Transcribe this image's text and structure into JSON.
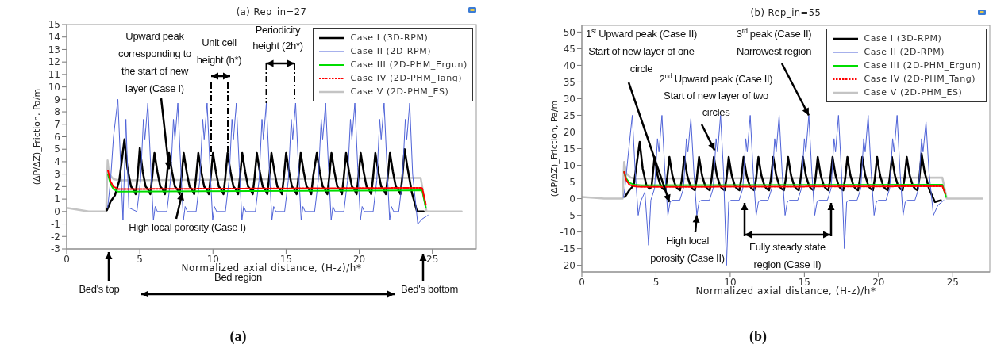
{
  "chart_data": [
    {
      "type": "line",
      "title": "(a) Rep_in=27",
      "xlabel": "Normalized axial distance, (H-z)/h*",
      "ylabel": "(ΔP/ΔZ)_Friction, Pa/m",
      "xlim": [
        0,
        28
      ],
      "ylim": [
        -3,
        15
      ],
      "xticks": [
        0,
        5,
        10,
        15,
        20,
        25
      ],
      "yticks": [
        -3,
        -2,
        -1,
        0,
        1,
        2,
        3,
        4,
        5,
        6,
        7,
        8,
        9,
        10,
        11,
        12,
        13,
        14,
        15
      ],
      "legend": "top right",
      "annotations": [
        {
          "text": "Upward peak corresponding to the start of new layer (Case I)",
          "x": 7.0,
          "y": 3.4
        },
        "Unit cell height (h*)",
        {
          "text": "Periodicity height (2h*)",
          "x": 13.65,
          "y": 8.7
        },
        {
          "text": "High local porosity (Case I)",
          "x": 7.9,
          "y": 1.5
        },
        "Bed's top",
        "Bed region",
        "Bed's bottom",
        "(a)"
      ],
      "series": [
        {
          "name": "Case I (3D-RPM)",
          "color": "#000000",
          "x": [
            2.75,
            3,
            3.3,
            3.6,
            3.95,
            4.15,
            4.4,
            4.55,
            4.72,
            4.85,
            5,
            5.2,
            5.4,
            5.55,
            5.72,
            5.85,
            6,
            6.2,
            6.4,
            6.55,
            6.72,
            6.85,
            7,
            7.2,
            7.4,
            7.55,
            7.72,
            7.85,
            8,
            8.2,
            8.4,
            8.55,
            8.72,
            8.85,
            9,
            9.2,
            9.4,
            9.55,
            9.72,
            9.85,
            10,
            10.2,
            10.4,
            10.55,
            10.72,
            10.85,
            11,
            11.2,
            11.4,
            11.55,
            11.72,
            11.85,
            12,
            12.2,
            12.4,
            12.55,
            12.72,
            12.85,
            13,
            13.2,
            13.4,
            13.55,
            13.72,
            13.85,
            14,
            14.2,
            14.4,
            14.55,
            14.72,
            14.85,
            15,
            15.2,
            15.4,
            15.55,
            15.72,
            15.85,
            16,
            16.2,
            16.4,
            16.55,
            16.72,
            16.85,
            17.1,
            17.3,
            17.5,
            17.65,
            17.82,
            17.95,
            18.1,
            18.3,
            18.5,
            18.65,
            18.82,
            18.95,
            19.1,
            19.3,
            19.5,
            19.65,
            19.82,
            19.95,
            20.1,
            20.3,
            20.5,
            20.65,
            20.82,
            20.95,
            21.1,
            21.3,
            21.5,
            21.65,
            21.82,
            21.95,
            22.1,
            22.3,
            22.5,
            22.65,
            22.82,
            22.95,
            23.1,
            23.3,
            23.6,
            23.95,
            24.4
          ],
          "values": [
            0.1,
            0.8,
            1.3,
            2.5,
            5.8,
            3.5,
            2,
            1.8,
            1.4,
            2.8,
            5.1,
            3.2,
            2,
            1.8,
            1.4,
            2.8,
            4.7,
            3.2,
            2,
            1.8,
            1.4,
            2.8,
            4.7,
            3.2,
            2,
            1.8,
            1.4,
            2.8,
            4.7,
            3.2,
            2,
            1.8,
            1.4,
            2.8,
            4.7,
            3.2,
            2,
            1.8,
            1.4,
            2.8,
            4.7,
            3.2,
            2,
            1.8,
            1.4,
            2.8,
            4.7,
            3.2,
            2,
            1.8,
            1.4,
            2.8,
            4.7,
            3.2,
            2,
            1.8,
            1.4,
            2.8,
            4.7,
            3.2,
            2,
            1.8,
            1.4,
            2.8,
            4.7,
            3.2,
            2,
            1.8,
            1.4,
            2.8,
            4.7,
            3.2,
            2,
            1.8,
            1.4,
            2.8,
            4.7,
            3.2,
            2,
            1.8,
            1.4,
            2.8,
            4.7,
            3.2,
            2,
            1.8,
            1.4,
            2.8,
            4.7,
            3.2,
            2,
            1.8,
            1.4,
            2.8,
            4.7,
            3.2,
            2,
            1.8,
            1.4,
            2.8,
            4.7,
            3.2,
            2,
            1.8,
            1.4,
            2.8,
            4.7,
            3.2,
            2,
            1.8,
            1.4,
            2.8,
            4.7,
            3.2,
            2,
            1.8,
            1.4,
            2.8,
            5,
            3.5,
            1.5,
            0,
            0
          ]
        },
        {
          "name": "Case II (2D-RPM)",
          "color": "#4f63d8",
          "x": [
            2.8,
            3,
            3.2,
            3.5,
            3.7,
            3.85,
            4.05,
            4.25,
            4.8,
            5.05,
            5.25,
            5.35,
            5.55,
            5.75,
            5.93,
            6.05,
            6.2,
            6.85,
            7.1,
            7.3,
            7.4,
            7.6,
            7.8,
            7.98,
            8.1,
            8.25,
            8.85,
            9.1,
            9.3,
            9.4,
            9.6,
            9.8,
            9.98,
            10.1,
            10.25,
            10.85,
            11.1,
            11.3,
            11.4,
            11.6,
            11.8,
            11.98,
            12.1,
            12.25,
            12.9,
            13.15,
            13.35,
            13.45,
            13.65,
            13.85,
            14.03,
            14.15,
            14.3,
            14.9,
            15.15,
            15.35,
            15.45,
            15.65,
            15.85,
            16.03,
            16.15,
            16.3,
            16.95,
            17.2,
            17.4,
            17.5,
            17.7,
            17.9,
            18.08,
            18.2,
            18.35,
            18.95,
            19.2,
            19.4,
            19.5,
            19.7,
            19.9,
            20.08,
            20.2,
            20.35,
            20.95,
            21.2,
            21.4,
            21.5,
            21.7,
            21.9,
            22.08,
            22.2,
            22.35,
            22.7,
            22.95,
            23.15,
            23.25,
            23.45,
            23.65,
            24,
            24.3,
            24.7
          ],
          "values": [
            0.3,
            2.5,
            6,
            9,
            3.5,
            -0.7,
            7.4,
            0.3,
            0,
            2.5,
            7.4,
            5.8,
            8.7,
            3.5,
            -0.7,
            0.4,
            0,
            0,
            2.5,
            7.4,
            5.8,
            8.7,
            3.5,
            -0.7,
            0.4,
            0,
            0,
            2.5,
            7.4,
            5.8,
            8.7,
            3.5,
            -0.7,
            0.4,
            0,
            0,
            2.5,
            7.4,
            5.8,
            8.7,
            3.5,
            -0.7,
            0.4,
            0,
            0,
            2.5,
            7.4,
            5.8,
            8.7,
            3.5,
            -0.7,
            0.4,
            0,
            0,
            2.5,
            7.4,
            5.8,
            8.7,
            3.5,
            -0.7,
            0.4,
            0,
            0,
            2.5,
            7.4,
            5.8,
            8.7,
            3.5,
            -0.7,
            0.4,
            0,
            0,
            2.5,
            7.4,
            5.8,
            8.7,
            3.5,
            -0.7,
            0.4,
            0,
            0,
            2.5,
            7.4,
            5.8,
            8.7,
            3.5,
            -0.7,
            0.4,
            0,
            0,
            2.5,
            7.4,
            5.8,
            8.7,
            3,
            -1,
            -0.6,
            -0.3
          ]
        },
        {
          "name": "Case III (2D-PHM_Ergun)",
          "color": "#00dd00",
          "x": [
            2.82,
            3,
            3.2,
            3.5,
            24.3,
            24.55
          ],
          "values": [
            3,
            2.2,
            1.8,
            1.6,
            1.7,
            0.3
          ]
        },
        {
          "name": "Case IV (2D-PHM_Tang)",
          "color": "#ff0000",
          "line_style": "dotted",
          "x": [
            2.82,
            3,
            3.2,
            3.5,
            24.3,
            24.55
          ],
          "values": [
            3.3,
            2.4,
            2,
            1.8,
            1.9,
            0.6
          ]
        },
        {
          "name": "Case V (2D-PHM_ES)",
          "color": "#c4c4c4",
          "x": [
            0,
            0.5,
            1,
            1.5,
            2.7,
            2.8,
            2.9,
            3.2,
            3.6,
            24.2,
            24.6,
            27
          ],
          "values": [
            0.3,
            0.2,
            0.1,
            0,
            0,
            4.1,
            3,
            2.6,
            2.5,
            2.7,
            0,
            0
          ]
        }
      ]
    },
    {
      "type": "line",
      "title": "(b) Rep_in=55",
      "xlabel": "Normalized axial distance, (H-z)/h*",
      "ylabel": "(ΔP/ΔZ)_Friction, Pa/m",
      "xlim": [
        0,
        27.5
      ],
      "ylim": [
        -22,
        52
      ],
      "xticks": [
        0,
        5,
        10,
        15,
        20,
        25
      ],
      "yticks": [
        -20,
        -15,
        -10,
        -5,
        0,
        5,
        10,
        15,
        20,
        25,
        30,
        35,
        40,
        45,
        50
      ],
      "legend": "top right",
      "annotations": [
        {
          "text": "1$^{st}$ Upward peak (Case II) Start of new layer of one circle",
          "x": 5.9,
          "y": -1
        },
        {
          "text": "2$^{nd}$ Upward peak (Case II) Start of new layer of two circles",
          "x": 8.95,
          "y": 14.5
        },
        {
          "text": "3$^{rd}$ peak (Case II) Narrowest region",
          "x": 15.3,
          "y": 25
        },
        {
          "text": "High local porosity (Case II)",
          "x": 7.75,
          "y": -5
        },
        "Fully steady state region (Case II)",
        "(b)"
      ],
      "series": [
        {
          "name": "Case I (3D-RPM)",
          "color": "#000000",
          "x": [
            2.9,
            3.2,
            3.5,
            3.9,
            4.1,
            4.35,
            4.55,
            4.7,
            4.9,
            5.1,
            5.3,
            5.45,
            5.62,
            5.75,
            5.9,
            6.1,
            6.3,
            6.45,
            6.62,
            6.75,
            6.9,
            7.1,
            7.3,
            7.45,
            7.62,
            7.75,
            7.9,
            8.1,
            8.3,
            8.45,
            8.62,
            8.75,
            8.9,
            9.1,
            9.3,
            9.45,
            9.62,
            9.75,
            9.9,
            10.1,
            10.3,
            10.45,
            10.62,
            10.75,
            10.9,
            11.1,
            11.3,
            11.45,
            11.62,
            11.75,
            11.9,
            12.1,
            12.3,
            12.45,
            12.62,
            12.75,
            12.9,
            13.1,
            13.3,
            13.45,
            13.62,
            13.75,
            13.9,
            14.1,
            14.3,
            14.45,
            14.62,
            14.75,
            14.9,
            15.1,
            15.3,
            15.45,
            15.62,
            15.75,
            15.9,
            16.1,
            16.3,
            16.45,
            16.62,
            16.75,
            16.9,
            17.1,
            17.3,
            17.45,
            17.62,
            17.75,
            17.9,
            18.1,
            18.3,
            18.45,
            18.62,
            18.75,
            18.9,
            19.1,
            19.3,
            19.45,
            19.62,
            19.75,
            19.9,
            20.1,
            20.3,
            20.45,
            20.62,
            20.75,
            20.9,
            21.1,
            21.3,
            21.45,
            21.62,
            21.75,
            21.9,
            22.1,
            22.3,
            22.45,
            22.62,
            22.75,
            22.9,
            23.1,
            23.4,
            23.8,
            24.2
          ],
          "values": [
            0.5,
            2.5,
            4,
            17,
            9,
            4,
            3,
            3.5,
            12.5,
            7,
            4,
            3,
            2.5,
            6,
            12.5,
            7,
            4,
            3,
            2.5,
            6,
            12.5,
            7,
            4,
            3,
            2.5,
            6,
            12.5,
            7,
            4,
            3,
            2.5,
            6,
            12.5,
            7,
            4,
            3,
            2.5,
            6,
            12.5,
            7,
            4,
            3,
            2.5,
            6,
            12.5,
            7,
            4,
            3,
            2.5,
            6,
            12.5,
            7,
            4,
            3,
            2.5,
            6,
            12.5,
            7,
            4,
            3,
            2.5,
            6,
            12.5,
            7,
            4,
            3,
            2.5,
            6,
            12.5,
            7,
            4,
            3,
            2.5,
            6,
            12.5,
            7,
            4,
            3,
            2.5,
            6,
            12.5,
            7,
            4,
            3,
            2.5,
            6,
            12.5,
            7,
            4,
            3,
            2.5,
            6,
            12.5,
            7,
            4,
            3,
            2.5,
            6,
            12.5,
            7,
            4,
            3,
            2.5,
            6,
            12.5,
            7,
            4,
            3,
            2.5,
            6,
            12.5,
            7,
            4,
            3,
            2.5,
            6,
            13.5,
            8,
            3,
            -1,
            -0.5
          ]
        },
        {
          "name": "Case II (2D-RPM)",
          "color": "#4f63d8",
          "x": [
            2.8,
            2.9,
            3.1,
            3.4,
            3.6,
            3.8,
            3.95,
            4.25,
            4.5,
            4.65,
            4.9,
            5.1,
            5.2,
            5.4,
            5.6,
            5.8,
            5.95,
            6.1,
            6.6,
            6.85,
            7.05,
            7.15,
            7.35,
            7.55,
            7.75,
            7.9,
            8.05,
            8.6,
            8.85,
            9.05,
            9.15,
            9.35,
            9.55,
            9.75,
            9.9,
            10.05,
            10.6,
            10.85,
            11.05,
            11.15,
            11.35,
            11.55,
            11.75,
            11.9,
            12.05,
            12.55,
            12.8,
            13,
            13.1,
            13.3,
            13.5,
            13.7,
            13.85,
            14,
            14.55,
            14.8,
            15,
            15.1,
            15.3,
            15.5,
            15.7,
            15.85,
            16,
            16.55,
            16.8,
            17,
            17.1,
            17.3,
            17.5,
            17.7,
            17.85,
            18,
            18.55,
            18.8,
            19,
            19.1,
            19.3,
            19.5,
            19.7,
            19.85,
            20,
            20.5,
            20.75,
            20.95,
            21.05,
            21.25,
            21.45,
            21.65,
            21.8,
            21.95,
            22.45,
            22.7,
            22.9,
            23,
            23.2,
            23.4,
            23.7,
            24,
            24.4
          ],
          "values": [
            0.3,
            3,
            12,
            25,
            8,
            -5,
            -1,
            2,
            -14,
            -0.5,
            3,
            18,
            14,
            25,
            8,
            -5,
            -1,
            -0.5,
            -0.5,
            3,
            18,
            14,
            24,
            8,
            -5,
            -1,
            -0.5,
            -0.5,
            3,
            18,
            14,
            25,
            8,
            -20,
            -1,
            -0.5,
            -0.5,
            3,
            18,
            14,
            25,
            8,
            -5,
            -1,
            -0.5,
            -0.5,
            3,
            18,
            14,
            25,
            8,
            -5,
            -1,
            -0.5,
            -0.5,
            3,
            18,
            14,
            25,
            8,
            -5,
            -1,
            -0.5,
            -0.5,
            3,
            18,
            14,
            25,
            8,
            -15,
            -1,
            -0.5,
            -0.5,
            3,
            18,
            14,
            25,
            8,
            -5,
            -1,
            -0.5,
            -0.5,
            3,
            18,
            14,
            25,
            8,
            -5,
            -1,
            -0.5,
            -0.5,
            3,
            18,
            14,
            23,
            8,
            -5,
            -2,
            -0.5
          ]
        },
        {
          "name": "Case III (2D-PHM_Ergun)",
          "color": "#00dd00",
          "x": [
            2.85,
            3,
            3.2,
            3.5,
            4,
            24.3,
            24.55
          ],
          "values": [
            8,
            6,
            4.8,
            4.2,
            4,
            4.2,
            0.5
          ]
        },
        {
          "name": "Case IV (2D-PHM_Tang)",
          "color": "#ff0000",
          "line_style": "dotted",
          "x": [
            2.85,
            3,
            3.2,
            3.5,
            4,
            24.3,
            24.5
          ],
          "values": [
            8,
            5.5,
            4.2,
            3.7,
            3.5,
            3.7,
            1.5
          ]
        },
        {
          "name": "Case V (2D-PHM_ES)",
          "color": "#c4c4c4",
          "x": [
            0,
            1,
            1.5,
            2.75,
            2.85,
            3,
            3.3,
            3.6,
            24.3,
            24.6,
            27
          ],
          "values": [
            0.5,
            0.2,
            0,
            0,
            11,
            7.5,
            6.3,
            6,
            6.3,
            0,
            0
          ]
        }
      ]
    }
  ]
}
